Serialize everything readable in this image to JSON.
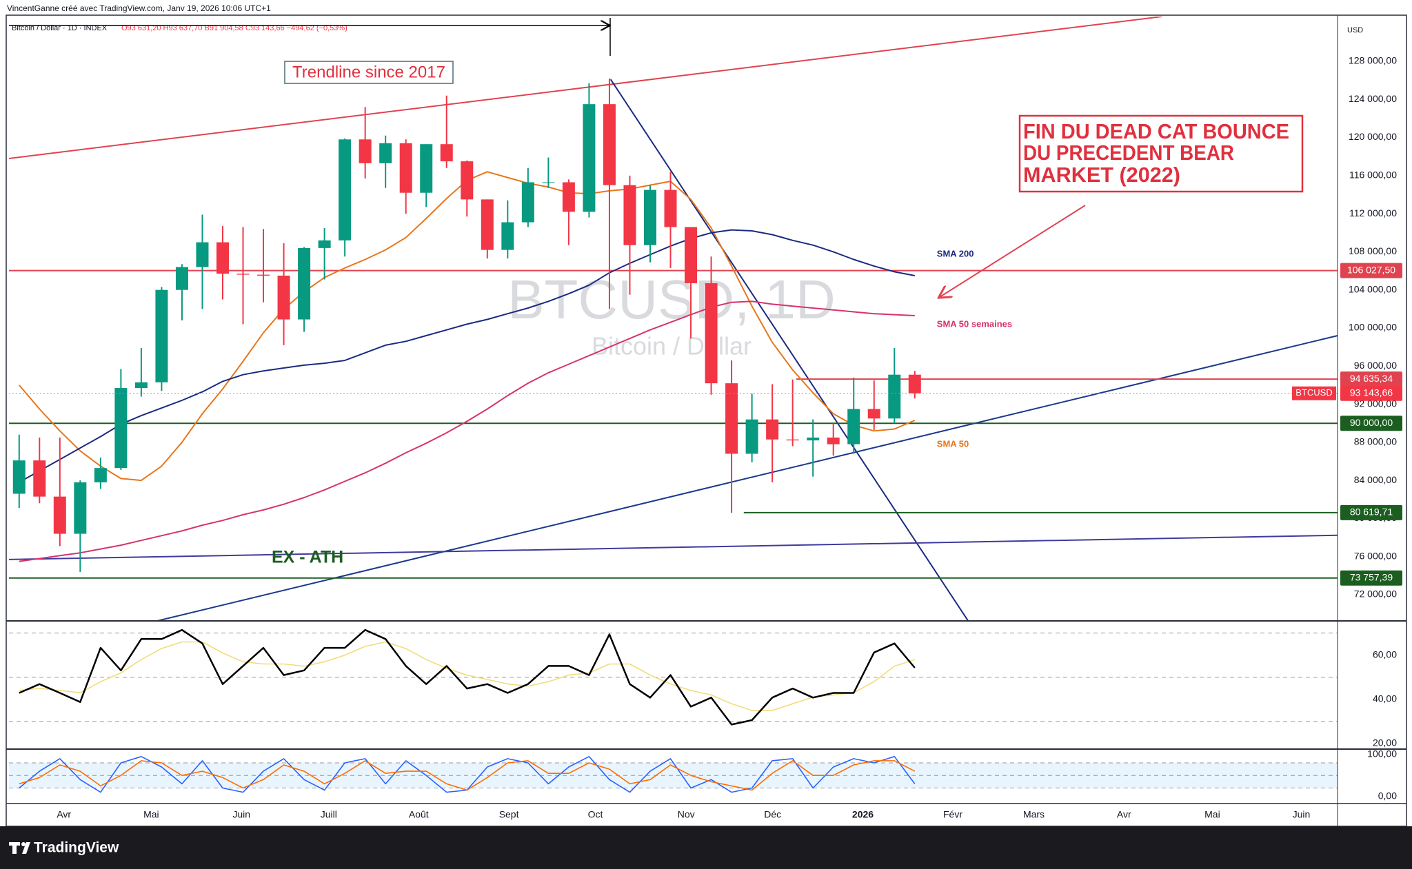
{
  "header": {
    "author_line": "VincentGanne créé avec TradingView.com, Janv 19, 2026 10:06 UTC+1",
    "symbol": "Bitcoin / Dollar · 1D · INDEX",
    "ohlc": "O93 631,20 H93 637,70 B91 904,58 C93 143,66 −494,62 (−0,53%)",
    "currency": "USD"
  },
  "watermark": {
    "symbol": "BTCUSD, 1D",
    "name": "Bitcoin / Dollar"
  },
  "annotations": {
    "trendline": "Trendline since 2017",
    "box": [
      "FIN DU DEAD CAT BOUNCE",
      "DU PRECEDENT BEAR",
      "MARKET (2022)"
    ],
    "ex_ath": "EX - ATH"
  },
  "footer": {
    "brand": "TradingView"
  },
  "chart_data": [
    {
      "type": "candlestick",
      "up_color": "#089981",
      "down_color": "#f23645",
      "xlim": [
        -0.5,
        64.77
      ],
      "xticks": [
        {
          "value": 2.2,
          "label": "Avr"
        },
        {
          "value": 6.49,
          "label": "Mai"
        },
        {
          "value": 10.92,
          "label": "Juin"
        },
        {
          "value": 15.21,
          "label": "Juill"
        },
        {
          "value": 19.63,
          "label": "Août"
        },
        {
          "value": 24.06,
          "label": "Sept"
        },
        {
          "value": 28.31,
          "label": "Oct"
        },
        {
          "value": 32.77,
          "label": "Nov"
        },
        {
          "value": 37.02,
          "label": "Déc"
        },
        {
          "value": 41.45,
          "label": "2026",
          "bold": true
        },
        {
          "value": 45.87,
          "label": "Févr"
        },
        {
          "value": 49.85,
          "label": "Mars"
        },
        {
          "value": 54.28,
          "label": "Avr"
        },
        {
          "value": 58.62,
          "label": "Mai"
        },
        {
          "value": 62.99,
          "label": "Juin"
        }
      ],
      "ylim": [
        69250,
        132700
      ],
      "yticks": [
        {
          "value": 128000,
          "label": "128 000,00"
        },
        {
          "value": 124000,
          "label": "124 000,00"
        },
        {
          "value": 120000,
          "label": "120 000,00"
        },
        {
          "value": 116000,
          "label": "116 000,00"
        },
        {
          "value": 112000,
          "label": "112 000,00"
        },
        {
          "value": 108000,
          "label": "108 000,00"
        },
        {
          "value": 104000,
          "label": "104 000,00"
        },
        {
          "value": 100000,
          "label": "100 000,00"
        },
        {
          "value": 96000,
          "label": "96 000,00"
        },
        {
          "value": 92000,
          "label": "92 000,00"
        },
        {
          "value": 88000,
          "label": "88 000,00"
        },
        {
          "value": 84000,
          "label": "84 000,00"
        },
        {
          "value": 80000,
          "label": "80 000,00"
        },
        {
          "value": 76000,
          "label": "76 000,00"
        },
        {
          "value": 72000,
          "label": "72 000,00"
        }
      ],
      "open": [
        82600,
        86100,
        82300,
        78400,
        83800,
        85300,
        93700,
        94300,
        104000,
        106400,
        109000,
        105700,
        105600,
        105500,
        100900,
        108400,
        109200,
        119800,
        117300,
        119400,
        114200,
        119300,
        117500,
        113500,
        108200,
        111100,
        115300,
        115300,
        112200,
        123500,
        115000,
        108700,
        114500,
        110600,
        104700,
        94200,
        86800,
        90400,
        88300,
        88200,
        88500,
        87800,
        91500,
        90500,
        95100
      ],
      "high": [
        88800,
        88500,
        88500,
        84000,
        86400,
        95700,
        97900,
        104300,
        106700,
        111900,
        110700,
        110600,
        110400,
        108900,
        108500,
        110500,
        119900,
        123200,
        120200,
        119800,
        119300,
        124400,
        117600,
        113500,
        113400,
        116800,
        117900,
        115600,
        125700,
        126200,
        116000,
        115000,
        116400,
        110600,
        107500,
        96600,
        93100,
        94100,
        94600,
        90400,
        90000,
        94800,
        94500,
        97900,
        95500
      ],
      "low": [
        81100,
        81600,
        77100,
        74400,
        83100,
        85100,
        92800,
        93400,
        100800,
        102000,
        103000,
        100400,
        102700,
        98200,
        99600,
        105100,
        107500,
        115700,
        114700,
        112000,
        112700,
        116800,
        111700,
        107300,
        107300,
        110600,
        114700,
        108700,
        111600,
        102000,
        103500,
        106900,
        106300,
        98900,
        93000,
        80600,
        85900,
        83800,
        87600,
        84400,
        86600,
        86800,
        89300,
        90000,
        92600
      ],
      "close": [
        86100,
        82300,
        78400,
        83800,
        85300,
        93700,
        94300,
        104000,
        106400,
        109000,
        105700,
        105600,
        105500,
        100900,
        108400,
        109200,
        119800,
        117300,
        119400,
        114200,
        119300,
        117500,
        113500,
        108200,
        111100,
        115300,
        115300,
        112200,
        123500,
        115000,
        108700,
        114500,
        110600,
        104700,
        94200,
        86800,
        90400,
        88300,
        88200,
        88500,
        87800,
        91500,
        90500,
        95100,
        93143.66
      ],
      "series": [
        {
          "name": "SMA 50",
          "color": "#e8761a",
          "values": [
            94000,
            91500,
            89200,
            87100,
            85500,
            84200,
            84000,
            85500,
            88000,
            91000,
            93600,
            96500,
            99500,
            102000,
            103800,
            105300,
            106300,
            107200,
            108200,
            109500,
            111500,
            113600,
            115500,
            116400,
            115800,
            115200,
            114800,
            114200,
            114100,
            114400,
            114600,
            115000,
            115400,
            113500,
            110500,
            106500,
            102300,
            98500,
            95600,
            93200,
            91000,
            89800,
            89200,
            89400,
            90300
          ]
        },
        {
          "name": "SMA 200",
          "color": "#1a2a80",
          "values": [
            83800,
            85000,
            86200,
            87400,
            88600,
            89900,
            90800,
            91600,
            92400,
            93300,
            94400,
            95100,
            95500,
            95800,
            96100,
            96300,
            96600,
            97400,
            98200,
            98600,
            99200,
            99800,
            100400,
            100900,
            101500,
            102100,
            102800,
            103600,
            104500,
            105800,
            106800,
            107700,
            108600,
            109400,
            110000,
            110300,
            110200,
            109800,
            109200,
            108700,
            108000,
            107200,
            106500,
            105900,
            105500
          ]
        },
        {
          "name": "SMA 50 semaines",
          "color": "#d6336c",
          "values": [
            75500,
            75800,
            76100,
            76400,
            76800,
            77200,
            77700,
            78200,
            78700,
            79300,
            79800,
            80400,
            80900,
            81500,
            82200,
            83000,
            83900,
            84800,
            85800,
            86900,
            87900,
            89000,
            90200,
            91500,
            92900,
            94200,
            95300,
            96200,
            97100,
            98000,
            98900,
            99800,
            100600,
            101400,
            102200,
            102700,
            102800,
            102500,
            102300,
            102100,
            101900,
            101700,
            101500,
            101400,
            101300
          ]
        }
      ],
      "trendlines": [
        {
          "x": [
            -0.5,
            56.14
          ],
          "y": [
            117800,
            132700
          ],
          "color": "#e0434f"
        },
        {
          "x": [
            29.06,
            46.62
          ],
          "y": [
            126100,
            69260
          ],
          "color": "#1a2a80"
        },
        {
          "x": [
            6.8,
            64.77
          ],
          "y": [
            69260,
            99200
          ],
          "color": "#1a3a8c"
        },
        {
          "x": [
            -0.5,
            64.77
          ],
          "y": [
            75700,
            78240
          ],
          "color": "#3f3a9c"
        }
      ],
      "levels": [
        {
          "value": 106027.5,
          "label": "106 027,50",
          "color": "#e0434f"
        },
        {
          "value": 94635.34,
          "label": "94 635,34",
          "color": "#e0434f",
          "x_start": 38.17
        },
        {
          "value": 90000,
          "label": "90 000,00",
          "color": "#1b5e20"
        },
        {
          "value": 80619.71,
          "label": "80 619,71",
          "color": "#1b5e20",
          "x_start": 35.6
        },
        {
          "value": 73757.39,
          "label": "73 757,39",
          "color": "#1b5e20"
        }
      ],
      "last_price": {
        "name": "BTCUSD",
        "value": 93143.66,
        "label": "93 143,66",
        "color": "#f23645"
      }
    },
    {
      "type": "line",
      "ylim": [
        17.5,
        75.5
      ],
      "yticks": [
        {
          "value": 60,
          "label": "60,00"
        },
        {
          "value": 40,
          "label": "40,00"
        },
        {
          "value": 20,
          "label": "20,00"
        }
      ],
      "levels": [
        70,
        50,
        30
      ],
      "series": [
        {
          "color": "#f2dc7a",
          "values": [
            44,
            45,
            44,
            43,
            48,
            52,
            58,
            63,
            66,
            66,
            61,
            57,
            56,
            56,
            55,
            57,
            60,
            64,
            66,
            63,
            58,
            54,
            51,
            49,
            47,
            46,
            48,
            51,
            52,
            56,
            56,
            51,
            47,
            44,
            42,
            38,
            35,
            35,
            38,
            41,
            42,
            43,
            48,
            55,
            58
          ]
        },
        {
          "color": "#000000",
          "values": [
            42.9,
            46.9,
            42.9,
            38.8,
            63.3,
            53.1,
            67.3,
            67.3,
            71.4,
            65.3,
            46.9,
            55.1,
            63.3,
            51.0,
            53.1,
            63.3,
            63.3,
            71.4,
            67.3,
            55.1,
            46.9,
            55.1,
            44.9,
            46.9,
            42.9,
            46.9,
            55.1,
            55.1,
            51.0,
            69.4,
            46.9,
            40.8,
            51.0,
            36.7,
            40.8,
            28.6,
            30.6,
            40.8,
            44.9,
            40.8,
            42.9,
            42.9,
            61.2,
            65.3,
            54.3
          ]
        }
      ]
    },
    {
      "type": "line",
      "ylim": [
        -17,
        112.8
      ],
      "yticks": [
        {
          "value": 100,
          "label": "100,00"
        },
        {
          "value": 0,
          "label": "0,00"
        }
      ],
      "band": [
        20,
        80
      ],
      "levels": [
        80,
        50,
        20
      ],
      "series": [
        {
          "color": "#2962ff",
          "values": [
            20,
            60,
            90,
            40,
            10,
            80,
            95,
            70,
            30,
            85,
            20,
            10,
            60,
            90,
            40,
            15,
            80,
            90,
            30,
            85,
            50,
            10,
            15,
            70,
            90,
            80,
            30,
            70,
            95,
            40,
            10,
            60,
            90,
            20,
            40,
            10,
            20,
            85,
            90,
            20,
            70,
            90,
            80,
            95,
            30
          ]
        },
        {
          "color": "#ff6d00",
          "values": [
            30,
            45,
            75,
            60,
            25,
            50,
            85,
            80,
            50,
            60,
            45,
            20,
            40,
            75,
            60,
            30,
            55,
            85,
            55,
            60,
            60,
            30,
            15,
            45,
            80,
            85,
            55,
            55,
            80,
            65,
            30,
            40,
            75,
            50,
            35,
            25,
            15,
            55,
            85,
            50,
            50,
            75,
            85,
            85,
            60
          ]
        }
      ]
    }
  ]
}
